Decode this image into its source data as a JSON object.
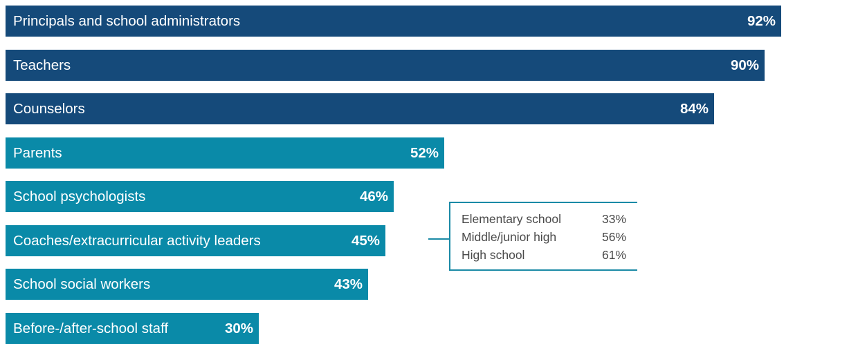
{
  "colors": {
    "dark_bar": "#154a7a",
    "light_bar": "#0a8aa8",
    "callout_border": "#1a8aa6",
    "callout_text": "#4a4a4a"
  },
  "chart_data": {
    "type": "bar",
    "orientation": "horizontal",
    "title": "",
    "xlabel": "",
    "ylabel": "",
    "xlim": [
      0,
      100
    ],
    "grid": false,
    "categories": [
      "Principals and school administrators",
      "Teachers",
      "Counselors",
      "Parents",
      "School psychologists",
      "Coaches/extracurricular activity leaders",
      "School social workers",
      "Before-/after-school staff"
    ],
    "values": [
      92,
      90,
      84,
      52,
      46,
      45,
      43,
      30
    ],
    "data_labels": [
      "92%",
      "90%",
      "84%",
      "52%",
      "46%",
      "45%",
      "43%",
      "30%"
    ],
    "bar_colors": [
      "dark",
      "dark",
      "dark",
      "light",
      "light",
      "light",
      "light",
      "light"
    ],
    "callout": {
      "attached_to": "Coaches/extracurricular activity leaders",
      "rows": [
        {
          "label": "Elementary school",
          "value": "33%"
        },
        {
          "label": "Middle/junior high",
          "value": "56%"
        },
        {
          "label": "High school",
          "value": "61%"
        }
      ]
    }
  }
}
